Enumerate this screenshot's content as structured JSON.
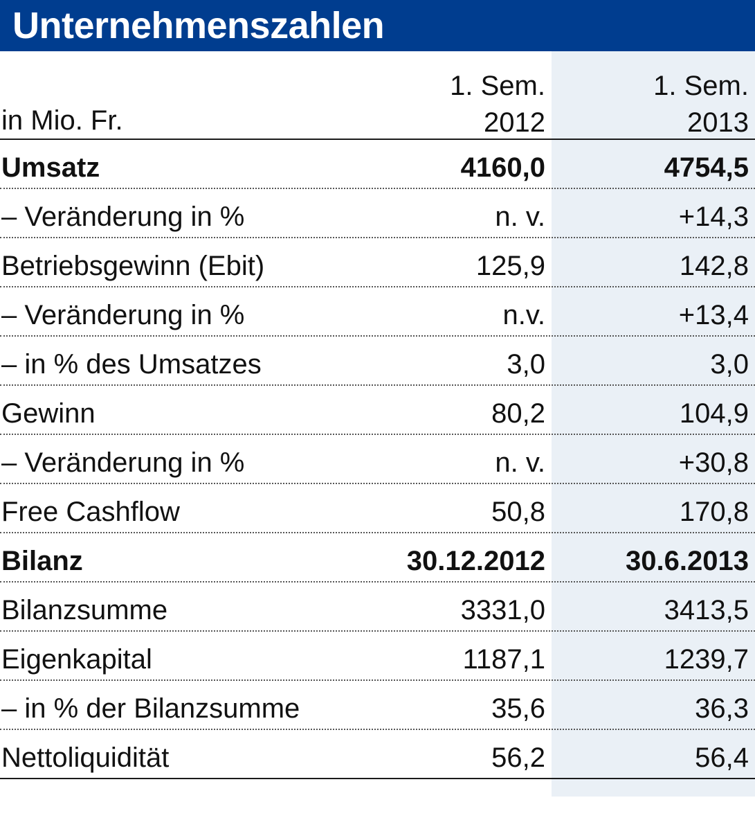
{
  "title": "Unternehmenszahlen",
  "colors": {
    "title_bar": "#003d8f",
    "title_text": "#ffffff",
    "column_shade": "#eaf0f6"
  },
  "table": {
    "unit_label": "in Mio. Fr.",
    "columns": [
      {
        "line1": "1. Sem.",
        "line2": "2012"
      },
      {
        "line1": "1. Sem.",
        "line2": "2013"
      }
    ],
    "rows": [
      {
        "label": "Umsatz",
        "v1": "4160,0",
        "v2": "4754,5",
        "bold": true
      },
      {
        "label": "– Veränderung in %",
        "v1": "n. v.",
        "v2": "+14,3"
      },
      {
        "label": "Betriebsgewinn (Ebit)",
        "v1": "125,9",
        "v2": "142,8"
      },
      {
        "label": "– Veränderung in %",
        "v1": "n.v.",
        "v2": "+13,4"
      },
      {
        "label": "– in % des Umsatzes",
        "v1": "3,0",
        "v2": "3,0"
      },
      {
        "label": "Gewinn",
        "v1": "80,2",
        "v2": "104,9"
      },
      {
        "label": "– Veränderung in %",
        "v1": "n. v.",
        "v2": "+30,8"
      },
      {
        "label": "Free Cashflow",
        "v1": "50,8",
        "v2": "170,8"
      },
      {
        "label": "Bilanz",
        "v1": "30.12.2012",
        "v2": "30.6.2013",
        "bold": true
      },
      {
        "label": "Bilanzsumme",
        "v1": "3331,0",
        "v2": "3413,5"
      },
      {
        "label": "Eigenkapital",
        "v1": "1187,1",
        "v2": "1239,7"
      },
      {
        "label": "– in % der Bilanzsumme",
        "v1": "35,6",
        "v2": "36,3"
      },
      {
        "label": "Nettoliquidität",
        "v1": "56,2",
        "v2": "56,4"
      }
    ]
  }
}
